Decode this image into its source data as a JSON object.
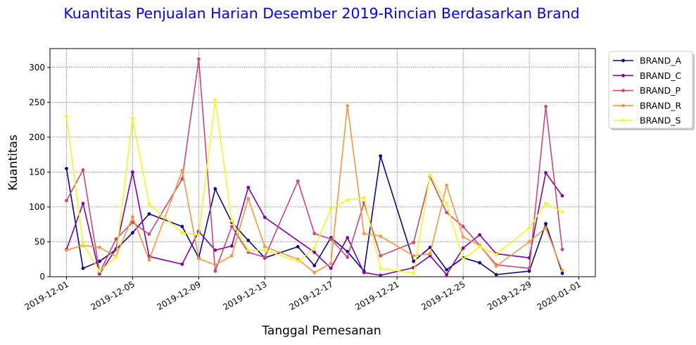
{
  "chart_data": {
    "type": "line",
    "title": "Kuantitas Penjualan Harian Desember 2019-Rincian Berdasarkan Brand",
    "title_color": "#0000ff",
    "xlabel": "Tanggal Pemesanan",
    "ylabel": "Kuantitas",
    "xlim": [
      "2019-11-30",
      "2020-01-02"
    ],
    "ylim": [
      0,
      327
    ],
    "grid": true,
    "legend_position": "outside-top-right",
    "x_ticks": [
      "2019-12-01",
      "2019-12-05",
      "2019-12-09",
      "2019-12-13",
      "2019-12-17",
      "2019-12-21",
      "2019-12-25",
      "2019-12-29",
      "2020-01-01"
    ],
    "y_ticks": [
      0,
      50,
      100,
      150,
      200,
      250,
      300
    ],
    "series": [
      {
        "name": "BRAND_A",
        "color": "#0d0887",
        "points": [
          [
            "2019-12-01",
            155
          ],
          [
            "2019-12-02",
            12
          ],
          [
            "2019-12-03",
            22
          ],
          [
            "2019-12-04",
            39
          ],
          [
            "2019-12-05",
            63
          ],
          [
            "2019-12-06",
            90
          ],
          [
            "2019-12-08",
            72
          ],
          [
            "2019-12-09",
            27
          ],
          [
            "2019-12-10",
            126
          ],
          [
            "2019-12-11",
            78
          ],
          [
            "2019-12-12",
            52
          ],
          [
            "2019-12-13",
            27
          ],
          [
            "2019-12-15",
            43
          ],
          [
            "2019-12-16",
            16
          ],
          [
            "2019-12-17",
            56
          ],
          [
            "2019-12-18",
            36
          ],
          [
            "2019-12-19",
            8
          ],
          [
            "2019-12-20",
            173
          ],
          [
            "2019-12-22",
            22
          ],
          [
            "2019-12-23",
            42
          ],
          [
            "2019-12-24",
            10
          ],
          [
            "2019-12-25",
            27
          ],
          [
            "2019-12-26",
            20
          ],
          [
            "2019-12-27",
            3
          ],
          [
            "2019-12-29",
            8
          ],
          [
            "2019-12-30",
            76
          ],
          [
            "2019-12-31",
            5
          ]
        ]
      },
      {
        "name": "BRAND_C",
        "color": "#7e03a8",
        "points": [
          [
            "2019-12-01",
            39
          ],
          [
            "2019-12-02",
            105
          ],
          [
            "2019-12-03",
            4
          ],
          [
            "2019-12-04",
            40
          ],
          [
            "2019-12-05",
            150
          ],
          [
            "2019-12-06",
            29
          ],
          [
            "2019-12-08",
            18
          ],
          [
            "2019-12-09",
            65
          ],
          [
            "2019-12-10",
            38
          ],
          [
            "2019-12-11",
            44
          ],
          [
            "2019-12-12",
            128
          ],
          [
            "2019-12-13",
            85
          ],
          [
            "2019-12-16",
            35
          ],
          [
            "2019-12-17",
            12
          ],
          [
            "2019-12-18",
            56
          ],
          [
            "2019-12-19",
            6
          ],
          [
            "2019-12-20",
            2
          ],
          [
            "2019-12-22",
            13
          ],
          [
            "2019-12-23",
            30
          ],
          [
            "2019-12-24",
            3
          ],
          [
            "2019-12-25",
            41
          ],
          [
            "2019-12-26",
            60
          ],
          [
            "2019-12-27",
            33
          ],
          [
            "2019-12-29",
            27
          ],
          [
            "2019-12-30",
            149
          ],
          [
            "2019-12-31",
            116
          ]
        ]
      },
      {
        "name": "BRAND_P",
        "color": "#cc4778",
        "points": [
          [
            "2019-12-01",
            109
          ],
          [
            "2019-12-02",
            153
          ],
          [
            "2019-12-03",
            6
          ],
          [
            "2019-12-04",
            54
          ],
          [
            "2019-12-05",
            78
          ],
          [
            "2019-12-06",
            61
          ],
          [
            "2019-12-08",
            140
          ],
          [
            "2019-12-09",
            312
          ],
          [
            "2019-12-10",
            8
          ],
          [
            "2019-12-11",
            72
          ],
          [
            "2019-12-12",
            35
          ],
          [
            "2019-12-13",
            28
          ],
          [
            "2019-12-15",
            137
          ],
          [
            "2019-12-16",
            62
          ],
          [
            "2019-12-17",
            54
          ],
          [
            "2019-12-18",
            28
          ],
          [
            "2019-12-19",
            106
          ],
          [
            "2019-12-20",
            30
          ],
          [
            "2019-12-22",
            49
          ],
          [
            "2019-12-23",
            143
          ],
          [
            "2019-12-24",
            92
          ],
          [
            "2019-12-25",
            72
          ],
          [
            "2019-12-26",
            45
          ],
          [
            "2019-12-27",
            17
          ],
          [
            "2019-12-29",
            12
          ],
          [
            "2019-12-30",
            244
          ],
          [
            "2019-12-31",
            39
          ]
        ]
      },
      {
        "name": "BRAND_R",
        "color": "#f89540",
        "points": [
          [
            "2019-12-01",
            38
          ],
          [
            "2019-12-02",
            45
          ],
          [
            "2019-12-03",
            42
          ],
          [
            "2019-12-04",
            29
          ],
          [
            "2019-12-05",
            86
          ],
          [
            "2019-12-06",
            24
          ],
          [
            "2019-12-08",
            152
          ],
          [
            "2019-12-09",
            26
          ],
          [
            "2019-12-10",
            17
          ],
          [
            "2019-12-11",
            30
          ],
          [
            "2019-12-12",
            112
          ],
          [
            "2019-12-13",
            43
          ],
          [
            "2019-12-15",
            25
          ],
          [
            "2019-12-16",
            6
          ],
          [
            "2019-12-17",
            19
          ],
          [
            "2019-12-18",
            245
          ],
          [
            "2019-12-19",
            62
          ],
          [
            "2019-12-20",
            58
          ],
          [
            "2019-12-22",
            30
          ],
          [
            "2019-12-23",
            33
          ],
          [
            "2019-12-24",
            131
          ],
          [
            "2019-12-25",
            57
          ],
          [
            "2019-12-26",
            45
          ],
          [
            "2019-12-27",
            15
          ],
          [
            "2019-12-29",
            50
          ],
          [
            "2019-12-30",
            70
          ],
          [
            "2019-12-31",
            9
          ]
        ]
      },
      {
        "name": "BRAND_S",
        "color": "#f0f921",
        "points": [
          [
            "2019-12-01",
            230
          ],
          [
            "2019-12-02",
            47
          ],
          [
            "2019-12-03",
            8
          ],
          [
            "2019-12-04",
            28
          ],
          [
            "2019-12-05",
            227
          ],
          [
            "2019-12-06",
            104
          ],
          [
            "2019-12-08",
            63
          ],
          [
            "2019-12-09",
            60
          ],
          [
            "2019-12-10",
            253
          ],
          [
            "2019-12-11",
            80
          ],
          [
            "2019-12-12",
            38
          ],
          [
            "2019-12-13",
            38
          ],
          [
            "2019-12-15",
            22
          ],
          [
            "2019-12-16",
            41
          ],
          [
            "2019-12-17",
            97
          ],
          [
            "2019-12-18",
            110
          ],
          [
            "2019-12-19",
            113
          ],
          [
            "2019-12-20",
            12
          ],
          [
            "2019-12-22",
            5
          ],
          [
            "2019-12-23",
            146
          ],
          [
            "2019-12-24",
            105
          ],
          [
            "2019-12-25",
            25
          ],
          [
            "2019-12-26",
            43
          ],
          [
            "2019-12-27",
            32
          ],
          [
            "2019-12-29",
            70
          ],
          [
            "2019-12-30",
            105
          ],
          [
            "2019-12-31",
            93
          ]
        ]
      }
    ]
  }
}
